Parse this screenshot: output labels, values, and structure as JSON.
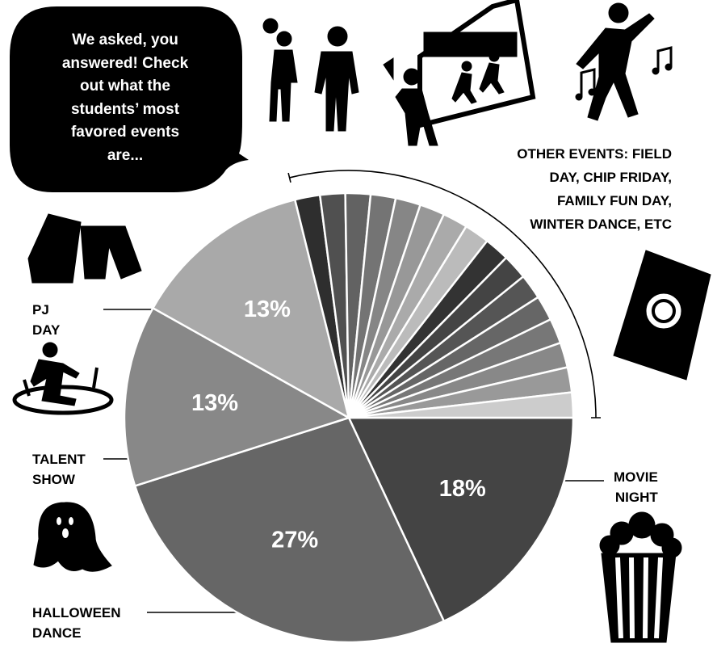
{
  "chart_data": {
    "type": "pie",
    "categories": [
      "MOVIE NIGHT",
      "HALLOWEEN DANCE",
      "TALENT SHOW",
      "PJ DAY",
      null,
      null,
      null,
      null,
      null,
      null,
      null,
      null,
      null,
      null,
      null,
      null,
      null,
      null,
      null,
      null
    ],
    "values": [
      18,
      27,
      13,
      13,
      1.8,
      1.8,
      1.8,
      1.8,
      1.8,
      1.8,
      1.8,
      1.8,
      1.8,
      1.8,
      1.8,
      1.8,
      1.8,
      1.8,
      1.8,
      1.8
    ],
    "value_labels": [
      "18%",
      "27%",
      "13%",
      "13%",
      null,
      null,
      null,
      null,
      null,
      null,
      null,
      null,
      null,
      null,
      null,
      null,
      null,
      null,
      null,
      null
    ],
    "colors": [
      "#444444",
      "#666666",
      "#888888",
      "#a9a9a9",
      "#2e2e2e",
      "#505050",
      "#626262",
      "#747474",
      "#868686",
      "#989898",
      "#aaaaaa",
      "#bbbbbb",
      "#333333",
      "#444444",
      "#555555",
      "#666666",
      "#777777",
      "#888888",
      "#999999",
      "#cccccc"
    ]
  },
  "speech_bubble": {
    "lines": [
      "We asked, you",
      "answered! Check",
      "out what the",
      "students’ most",
      "favored events",
      "are..."
    ]
  },
  "other_events": {
    "lines": [
      "OTHER EVENTS: FIELD",
      "DAY, CHIP FRIDAY,",
      "FAMILY FUN DAY,",
      "WINTER DANCE, ETC"
    ]
  }
}
